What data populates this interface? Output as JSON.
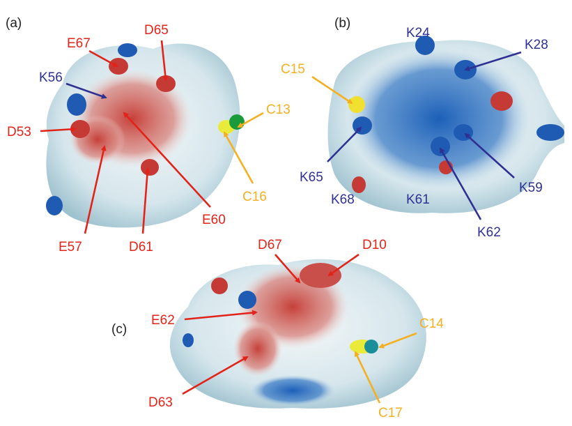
{
  "panels": [
    {
      "label": "(a)",
      "annotations": [
        "E67",
        "D65",
        "K56",
        "D53",
        "C13",
        "C16",
        "E60",
        "E57",
        "D61"
      ]
    },
    {
      "label": "(b)",
      "annotations": [
        "K24",
        "K28",
        "C15",
        "K65",
        "K68",
        "K61",
        "K59",
        "K62"
      ]
    },
    {
      "label": "(c)",
      "annotations": [
        "D67",
        "D10",
        "E62",
        "C14",
        "D63",
        "C17"
      ]
    }
  ]
}
